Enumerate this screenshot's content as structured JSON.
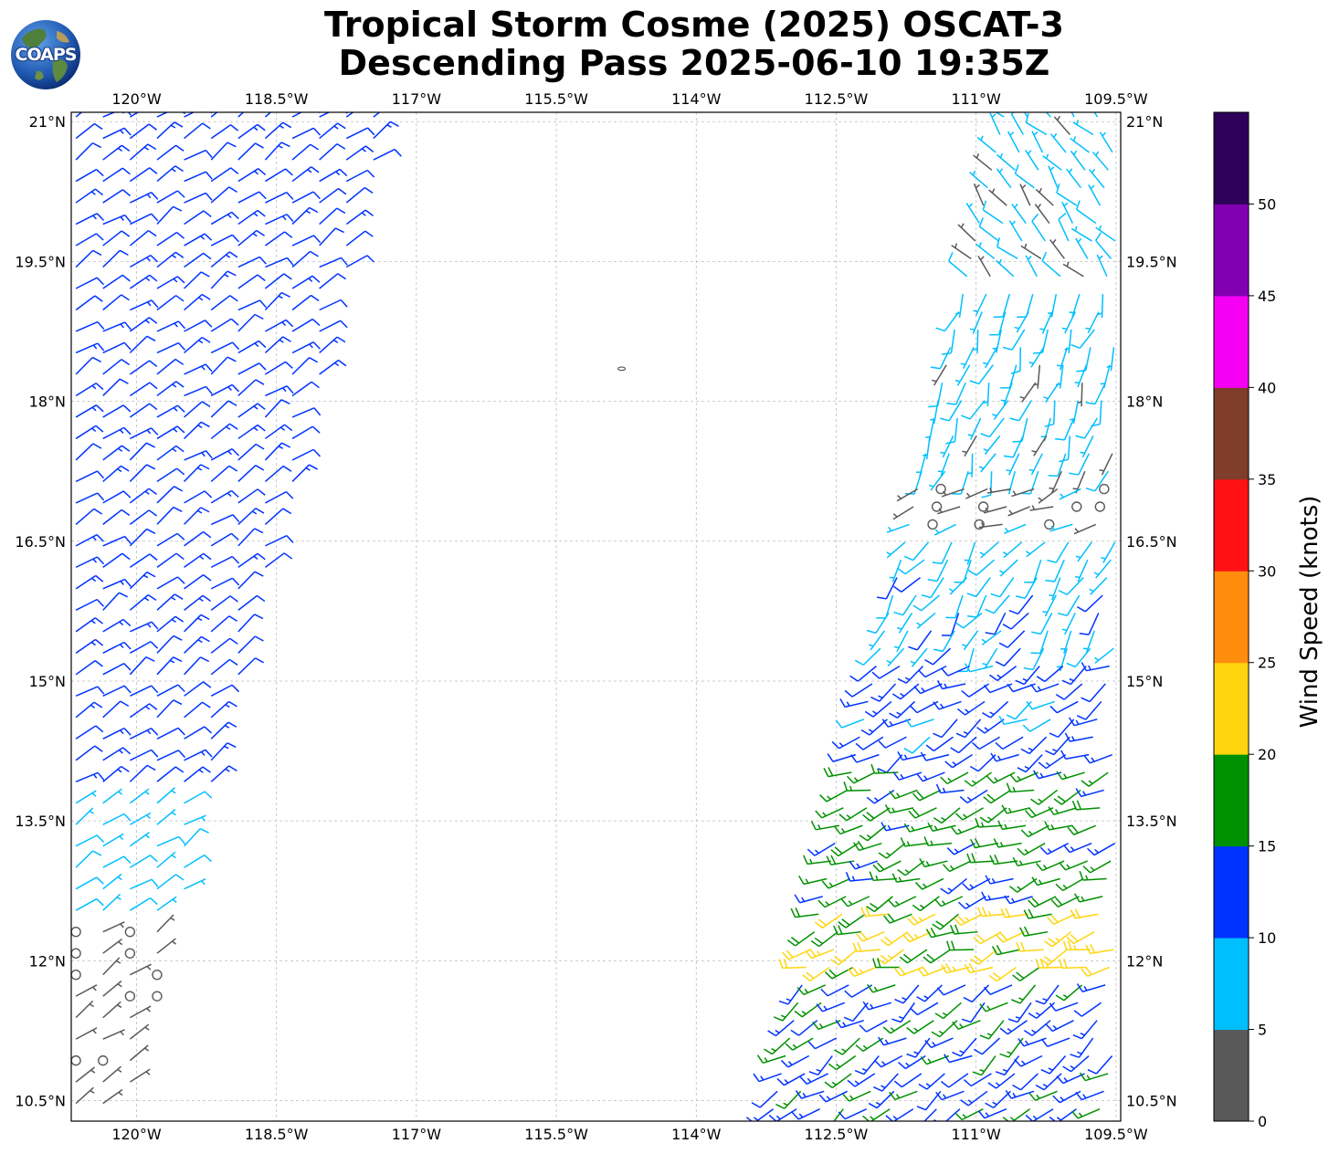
{
  "header": {
    "title_line1": "Tropical Storm Cosme (2025) OSCAT-3",
    "title_line2": "Descending Pass 2025-06-10 19:35Z",
    "logo_text": "COAPS"
  },
  "map": {
    "lon_range": [
      -120.7,
      -109.45
    ],
    "lat_range": [
      10.28,
      21.1
    ],
    "lon_tick_labels": [
      "120°W",
      "118.5°W",
      "117°W",
      "115.5°W",
      "114°W",
      "112.5°W",
      "111°W",
      "109.5°W"
    ],
    "lon_tick_values": [
      -120,
      -118.5,
      -117,
      -115.5,
      -114,
      -112.5,
      -111,
      -109.5
    ],
    "lat_tick_labels": [
      "21°N",
      "19.5°N",
      "18°N",
      "16.5°N",
      "15°N",
      "13.5°N",
      "12°N",
      "10.5°N"
    ],
    "lat_tick_values": [
      21,
      19.5,
      18,
      16.5,
      15,
      13.5,
      12,
      10.5
    ],
    "grid": true,
    "island_marker": {
      "lon": -114.8,
      "lat": 18.35
    }
  },
  "colorbar": {
    "label": "Wind Speed (knots)",
    "tick_labels": [
      "0",
      "5",
      "10",
      "15",
      "20",
      "25",
      "30",
      "35",
      "40",
      "45",
      "50"
    ],
    "bins": [
      {
        "min": 0,
        "max": 5,
        "color": "#595959"
      },
      {
        "min": 5,
        "max": 10,
        "color": "#00bfff"
      },
      {
        "min": 10,
        "max": 15,
        "color": "#0033ff"
      },
      {
        "min": 15,
        "max": 20,
        "color": "#009100"
      },
      {
        "min": 20,
        "max": 25,
        "color": "#ffd50f"
      },
      {
        "min": 25,
        "max": 30,
        "color": "#ff8c0d"
      },
      {
        "min": 30,
        "max": 35,
        "color": "#ff1114"
      },
      {
        "min": 35,
        "max": 40,
        "color": "#7f3d2a"
      },
      {
        "min": 40,
        "max": 45,
        "color": "#f500f5"
      },
      {
        "min": 45,
        "max": 50,
        "color": "#8200b2"
      },
      {
        "min": 50,
        "max": 55,
        "color": "#2e005b"
      }
    ]
  },
  "chart_data": {
    "type": "wind_barbs",
    "units": "knots",
    "swaths": [
      {
        "side": "west",
        "lat_bounds": [
          10.4,
          21.05
        ],
        "lon_west": -120.7,
        "lon_east_at_top": -117.3,
        "lon_east_at_bottom": -120.1,
        "direction_from_deg": 55,
        "speed_zones": [
          {
            "lat_min": 13.8,
            "lat_max": 21.1,
            "speed": 12
          },
          {
            "lat_min": 12.4,
            "lat_max": 13.8,
            "speed": 7
          },
          {
            "lat_min": 10.4,
            "lat_max": 12.4,
            "speed": 3
          }
        ]
      },
      {
        "side": "east",
        "lat_bounds": [
          10.3,
          21.05
        ],
        "lon_east": -109.5,
        "lon_west_at_top": -110.7,
        "lon_west_at_bottom": -113.2,
        "zones": [
          {
            "lat_min": 19.2,
            "lat_max": 21.1,
            "speed": 7,
            "direction_from_deg": 320
          },
          {
            "lat_min": 17.2,
            "lat_max": 19.2,
            "speed": 7,
            "direction_from_deg": 200
          },
          {
            "lat_min": 16.6,
            "lat_max": 17.2,
            "speed": 3,
            "direction_from_deg": 250
          },
          {
            "lat_min": 15.2,
            "lat_max": 16.6,
            "speed": 8,
            "direction_from_deg": 215
          },
          {
            "lat_min": 14.2,
            "lat_max": 15.2,
            "speed": 12,
            "direction_from_deg": 240
          },
          {
            "lat_min": 12.6,
            "lat_max": 14.2,
            "speed": 16,
            "direction_from_deg": 250
          },
          {
            "lat_min": 11.8,
            "lat_max": 12.6,
            "speed": 21,
            "direction_from_deg": 250
          },
          {
            "lat_min": 10.3,
            "lat_max": 11.8,
            "speed": 14,
            "direction_from_deg": 235
          }
        ]
      }
    ]
  }
}
